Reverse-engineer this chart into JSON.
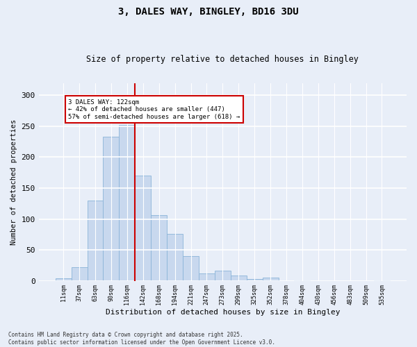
{
  "title1": "3, DALES WAY, BINGLEY, BD16 3DU",
  "title2": "Size of property relative to detached houses in Bingley",
  "xlabel": "Distribution of detached houses by size in Bingley",
  "ylabel": "Number of detached properties",
  "bar_labels": [
    "11sqm",
    "37sqm",
    "63sqm",
    "90sqm",
    "116sqm",
    "142sqm",
    "168sqm",
    "194sqm",
    "221sqm",
    "247sqm",
    "273sqm",
    "299sqm",
    "325sqm",
    "352sqm",
    "378sqm",
    "404sqm",
    "430sqm",
    "456sqm",
    "483sqm",
    "509sqm",
    "535sqm"
  ],
  "bar_values": [
    4,
    22,
    130,
    233,
    252,
    170,
    106,
    76,
    40,
    12,
    16,
    9,
    3,
    5,
    0,
    1,
    0,
    0,
    0,
    0,
    1
  ],
  "bar_color": "#c8d8ee",
  "bar_edge_color": "#8ab4d8",
  "vline_color": "#cc0000",
  "annotation_title": "3 DALES WAY: 122sqm",
  "annotation_line1": "← 42% of detached houses are smaller (447)",
  "annotation_line2": "57% of semi-detached houses are larger (618) →",
  "annotation_box_color": "white",
  "annotation_box_edge": "#cc0000",
  "ylim": [
    0,
    320
  ],
  "yticks": [
    0,
    50,
    100,
    150,
    200,
    250,
    300
  ],
  "footer1": "Contains HM Land Registry data © Crown copyright and database right 2025.",
  "footer2": "Contains public sector information licensed under the Open Government Licence v3.0.",
  "bg_color": "#e8eef8",
  "plot_bg_color": "#e8eef8",
  "vline_bar_index": 4
}
